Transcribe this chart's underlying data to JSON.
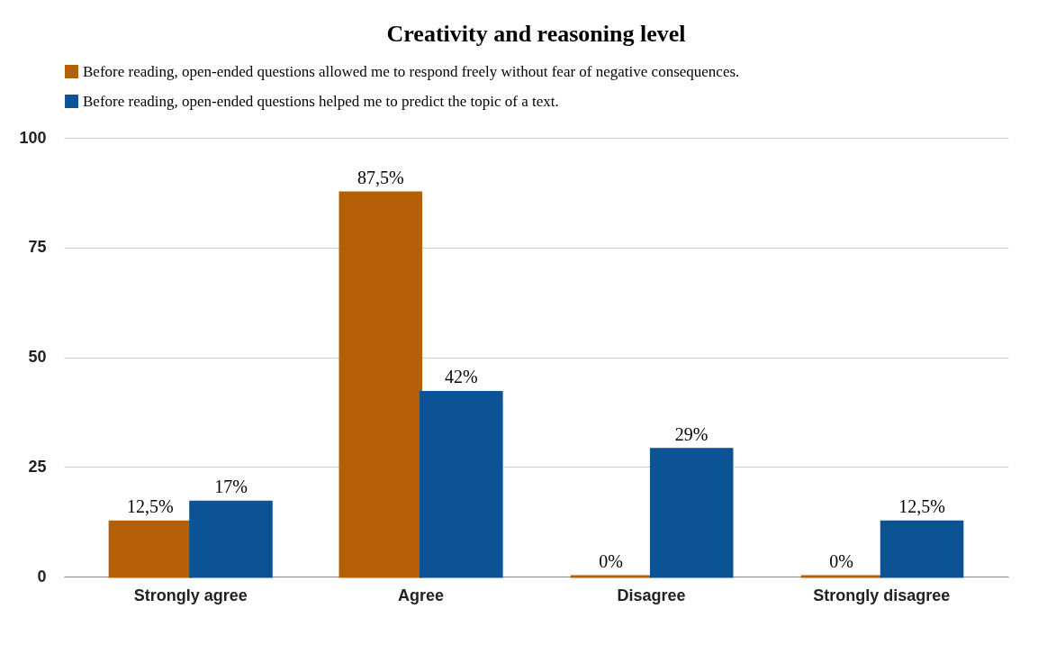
{
  "chart_data": {
    "type": "bar",
    "title": "Creativity and reasoning level",
    "categories": [
      "Strongly agree",
      "Agree",
      "Disagree",
      "Strongly disagree"
    ],
    "series": [
      {
        "name": "Before reading, open-ended questions allowed me to respond freely without fear of negative consequences.",
        "color": "#b45f06",
        "values": [
          12.5,
          87.5,
          0,
          0
        ],
        "value_labels": [
          "12,5%",
          "87,5%",
          "0%",
          "0%"
        ]
      },
      {
        "name": "Before reading, open-ended questions helped me to predict the topic of a text.",
        "color": "#0b5394",
        "values": [
          17,
          42,
          29,
          12.5
        ],
        "value_labels": [
          "17%",
          "42%",
          "29%",
          "12,5%"
        ]
      }
    ],
    "ylim": [
      0,
      100
    ],
    "yticks": [
      0,
      25,
      50,
      75,
      100
    ],
    "grid": "y",
    "legend": "top left"
  }
}
